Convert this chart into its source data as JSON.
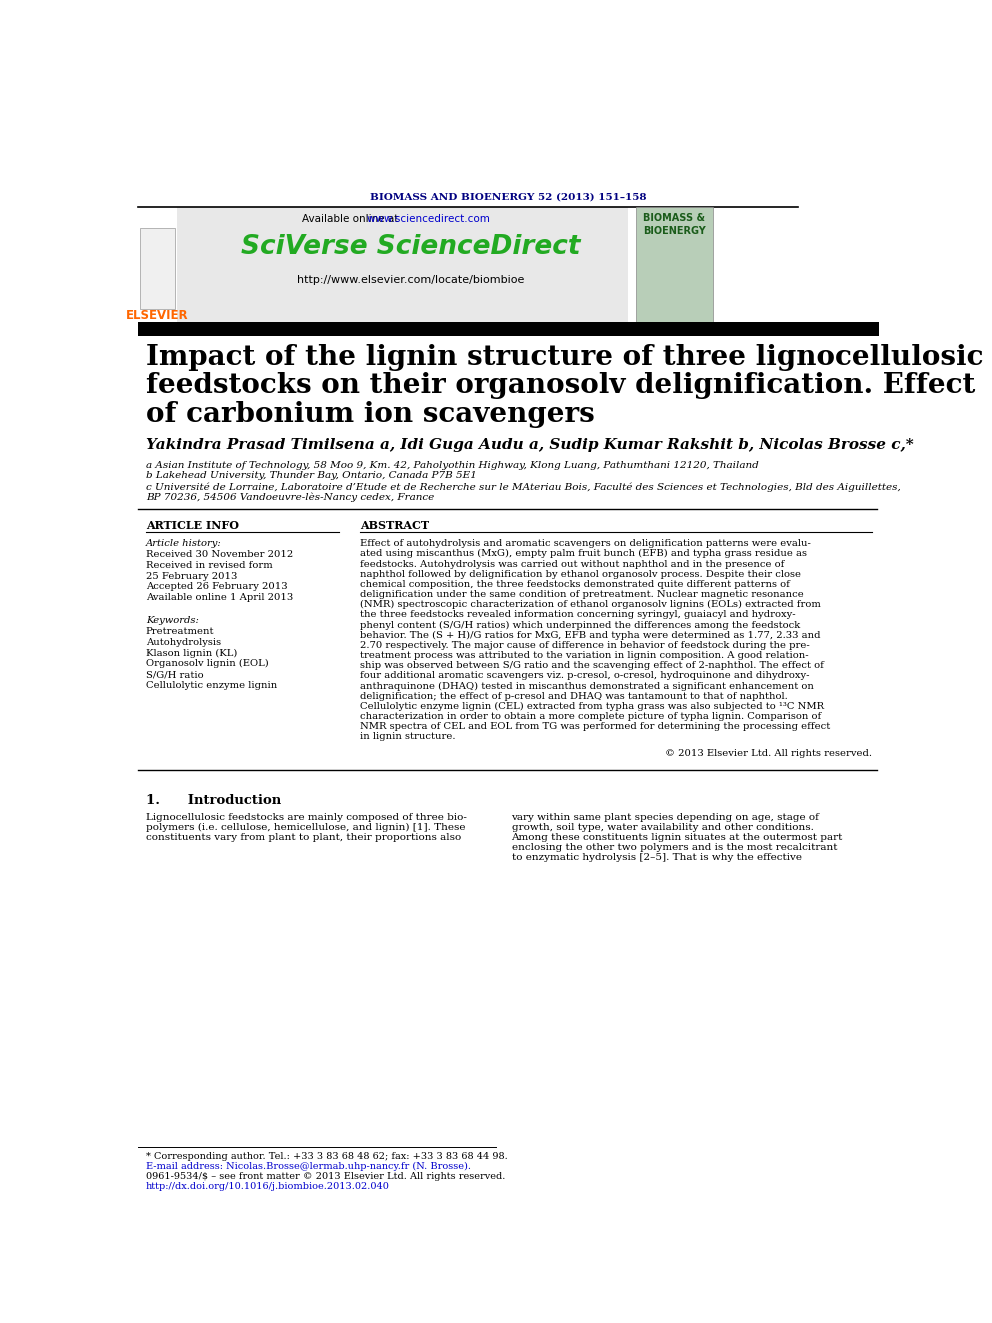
{
  "journal_header": "BIOMASS AND BIOENERGY 52 (2013) 151–158",
  "title_line1": "Impact of the lignin structure of three lignocellulosic",
  "title_line2": "feedstocks on their organosolv delignification. Effect",
  "title_line3": "of carbonium ion scavengers",
  "author_str": "Yakindra Prasad Timilsena a, Idi Guga Audu a, Sudip Kumar Rakshit b, Nicolas Brosse c,*",
  "affiliation_a": "a Asian Institute of Technology, 58 Moo 9, Km. 42, Paholyothin Highway, Klong Luang, Pathumthani 12120, Thailand",
  "affiliation_b": "b Lakehead University, Thunder Bay, Ontario, Canada P7B 5E1",
  "affiliation_c1": "c Université de Lorraine, Laboratoire d’Etude et de Recherche sur le MAteriau Bois, Faculté des Sciences et Technologies, Bld des Aiguillettes,",
  "affiliation_c2": "BP 70236, 54506 Vandoeuvre-lès-Nancy cedex, France",
  "article_info_title": "ARTICLE INFO",
  "abstract_title": "ABSTRACT",
  "article_history_label": "Article history:",
  "received1": "Received 30 November 2012",
  "revised": "Received in revised form",
  "date_revised": "25 February 2013",
  "accepted": "Accepted 26 February 2013",
  "available": "Available online 1 April 2013",
  "keywords_label": "Keywords:",
  "kw1": "Pretreatment",
  "kw2": "Autohydrolysis",
  "kw3": "Klason lignin (KL)",
  "kw4": "Organosolv lignin (EOL)",
  "kw5": "S/G/H ratio",
  "kw6": "Cellulolytic enzyme lignin",
  "abstract_lines": [
    "Effect of autohydrolysis and aromatic scavengers on delignification patterns were evalu-",
    "ated using miscanthus (MxG), empty palm fruit bunch (EFB) and typha grass residue as",
    "feedstocks. Autohydrolysis was carried out without naphthol and in the presence of",
    "naphthol followed by delignification by ethanol organosolv process. Despite their close",
    "chemical composition, the three feedstocks demonstrated quite different patterns of",
    "delignification under the same condition of pretreatment. Nuclear magnetic resonance",
    "(NMR) spectroscopic characterization of ethanol organosolv lignins (EOLs) extracted from",
    "the three feedstocks revealed information concerning syringyl, guaiacyl and hydroxy-",
    "phenyl content (S/G/H ratios) which underpinned the differences among the feedstock",
    "behavior. The (S + H)/G ratios for MxG, EFB and typha were determined as 1.77, 2.33 and",
    "2.70 respectively. The major cause of difference in behavior of feedstock during the pre-",
    "treatment process was attributed to the variation in lignin composition. A good relation-",
    "ship was observed between S/G ratio and the scavenging effect of 2-naphthol. The effect of",
    "four additional aromatic scavengers viz. p-cresol, o-cresol, hydroquinone and dihydroxy-",
    "anthraquinone (DHAQ) tested in miscanthus demonstrated a significant enhancement on",
    "delignification; the effect of p-cresol and DHAQ was tantamount to that of naphthol.",
    "Cellulolytic enzyme lignin (CEL) extracted from typha grass was also subjected to ¹³C NMR",
    "characterization in order to obtain a more complete picture of typha lignin. Comparison of",
    "NMR spectra of CEL and EOL from TG was performed for determining the processing effect",
    "in lignin structure."
  ],
  "copyright": "© 2013 Elsevier Ltd. All rights reserved.",
  "section1_title": "1.      Introduction",
  "intro1_lines": [
    "Lignocellulosic feedstocks are mainly composed of three bio-",
    "polymers (i.e. cellulose, hemicellulose, and lignin) [1]. These",
    "constituents vary from plant to plant, their proportions also"
  ],
  "intro2_lines": [
    "vary within same plant species depending on age, stage of",
    "growth, soil type, water availability and other conditions.",
    "Among these constituents lignin situates at the outermost part",
    "enclosing the other two polymers and is the most recalcitrant",
    "to enzymatic hydrolysis [2–5]. That is why the effective"
  ],
  "footnote1": "* Corresponding author. Tel.: +33 3 83 68 48 62; fax: +33 3 83 68 44 98.",
  "footnote2": "E-mail address: Nicolas.Brosse@lermab.uhp-nancy.fr (N. Brosse).",
  "footnote3": "0961-9534/$ – see front matter © 2013 Elsevier Ltd. All rights reserved.",
  "footnote4": "http://dx.doi.org/10.1016/j.biombioe.2013.02.040",
  "elsevier_color": "#FF6600",
  "sciverse_color": "#22AA22",
  "link_color": "#0000CC",
  "header_color": "#000080",
  "background_gray": "#E8E8E8",
  "cover_green": "#B8CEB8"
}
